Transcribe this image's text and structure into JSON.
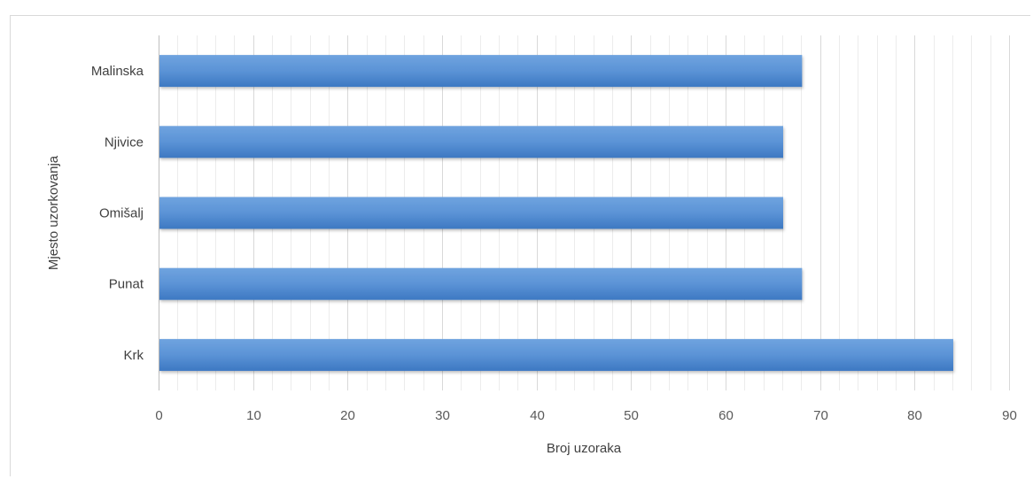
{
  "chart_data": {
    "type": "bar",
    "orientation": "horizontal",
    "categories": [
      "Malinska",
      "Njivice",
      "Omišalj",
      "Punat",
      "Krk"
    ],
    "values": [
      68,
      66,
      66,
      68,
      84
    ],
    "title": "",
    "xlabel": "Broj uzoraka",
    "ylabel": "Mjesto uzorkovanja",
    "xlim": [
      0,
      90
    ],
    "xticks": [
      0,
      10,
      20,
      30,
      40,
      50,
      60,
      70,
      80,
      90
    ],
    "xtick_labels": [
      "0",
      "10",
      "20",
      "30",
      "40",
      "50",
      "60",
      "70",
      "80",
      "90"
    ],
    "grid": "major and minor vertical",
    "legend": "none",
    "colors": {
      "bar_top": "#6fa3df",
      "bar_mid": "#5b93d6",
      "bar_bottom": "#3d78c2",
      "major_grid": "#d9d9d9",
      "minor_grid": "#ececec",
      "axis": "#bfbfbf"
    }
  }
}
